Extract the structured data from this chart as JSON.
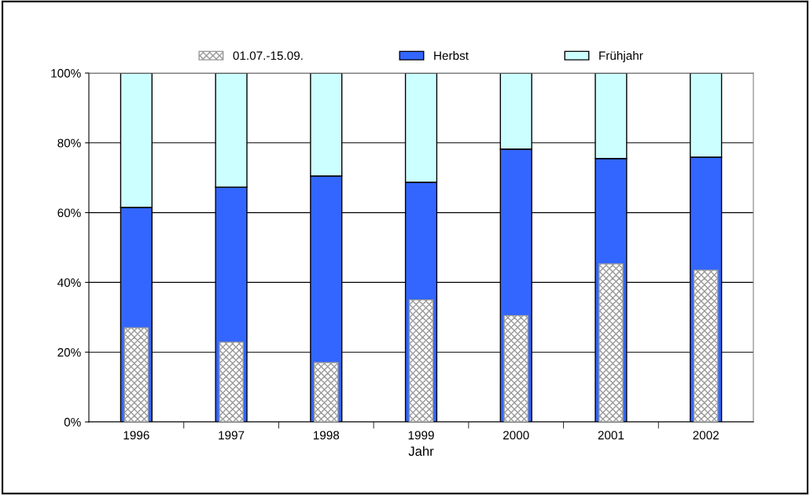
{
  "chart_data": {
    "type": "bar",
    "xlabel": "Jahr",
    "categories": [
      "1996",
      "1997",
      "1998",
      "1999",
      "2000",
      "2001",
      "2002"
    ],
    "series": [
      {
        "name": "01.07.-15.09.",
        "color": "#999999",
        "values": [
          27.0,
          22.9,
          17.0,
          35.0,
          30.5,
          45.3,
          43.5
        ]
      },
      {
        "name": "Herbst",
        "color": "#3366ff",
        "base": [
          0,
          0,
          0,
          0,
          0,
          0,
          0
        ],
        "values": [
          61.5,
          67.3,
          70.5,
          68.7,
          78.2,
          75.5,
          75.9
        ]
      },
      {
        "name": "Frühjahr",
        "color": "#ccffff",
        "base": [
          61.5,
          67.3,
          70.5,
          68.7,
          78.2,
          75.5,
          75.9
        ],
        "values": [
          38.5,
          32.7,
          29.5,
          31.3,
          21.8,
          24.5,
          24.1
        ]
      }
    ],
    "ylim": [
      0,
      100
    ],
    "yticks": [
      {
        "value": 0,
        "label": "0%"
      },
      {
        "value": 20,
        "label": "20%"
      },
      {
        "value": 40,
        "label": "40%"
      },
      {
        "value": 60,
        "label": "60%"
      },
      {
        "value": 80,
        "label": "80%"
      },
      {
        "value": 100,
        "label": "100%"
      }
    ],
    "grid": "y",
    "legend": "top"
  }
}
